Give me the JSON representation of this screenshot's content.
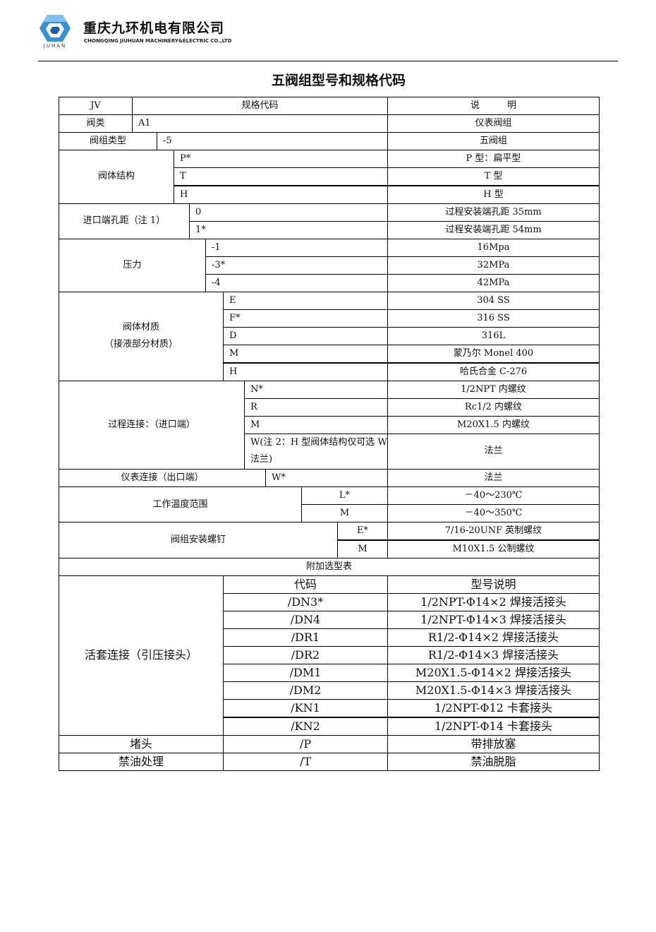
{
  "header": {
    "company_cn": "重庆九环机电有限公司",
    "company_en": "CHONGQING JIUHUAN MACHINERY&ELECTRIC CO.,LTD",
    "logo_text": "JUHAN",
    "brand_color": "#3a8fd0"
  },
  "title": "五阀组型号和规格代码",
  "table": {
    "head": {
      "prefix": "JV",
      "code": "规格代码",
      "desc": "说　　　明"
    },
    "sections": [
      {
        "label": "阀类",
        "rows": [
          {
            "code": "A1",
            "desc": "仪表阀组"
          }
        ]
      },
      {
        "label": "阀组类型",
        "rows": [
          {
            "code": "-5",
            "desc": "五阀组"
          }
        ]
      },
      {
        "label": "阀体结构",
        "rows": [
          {
            "code": "P*",
            "desc": "P 型：扁平型"
          },
          {
            "code": "T",
            "desc": "T 型"
          },
          {
            "code": "H",
            "desc": "H 型"
          }
        ]
      },
      {
        "label": "进口端孔距（注 1）",
        "rows": [
          {
            "code": "0",
            "desc": "过程安装端孔距 35mm"
          },
          {
            "code": "1*",
            "desc": "过程安装端孔距 54mm"
          }
        ]
      },
      {
        "label": "压力",
        "rows": [
          {
            "code": "-1",
            "desc": "16Mpa"
          },
          {
            "code": "-3*",
            "desc": "32MPa"
          },
          {
            "code": "-4",
            "desc": "42MPa"
          }
        ]
      },
      {
        "label": "阀体材质\n（接液部分材质）",
        "rows": [
          {
            "code": "E",
            "desc": "304 SS"
          },
          {
            "code": "F*",
            "desc": "316 SS"
          },
          {
            "code": "D",
            "desc": "316L"
          },
          {
            "code": "M",
            "desc": "蒙乃尔 Monel 400"
          },
          {
            "code": "H",
            "desc": "哈氏合金 C-276"
          }
        ]
      },
      {
        "label": "过程连接：（进口端）",
        "rows": [
          {
            "code": "N*",
            "desc": "1/2NPT 内螺纹"
          },
          {
            "code": "R",
            "desc": "Rc1/2 内螺纹"
          },
          {
            "code": "M",
            "desc": "M20X1.5 内螺纹"
          },
          {
            "code": "W(注 2：H 型阀体结构仅可选 W 法兰)",
            "desc": "法兰"
          }
        ]
      },
      {
        "label": "仪表连接（出口端）",
        "rows": [
          {
            "code": "W*",
            "desc": "法兰"
          }
        ]
      },
      {
        "label": "工作温度范围",
        "rows": [
          {
            "code": "L*",
            "desc": "－40～230℃"
          },
          {
            "code": "M",
            "desc": "－40～350℃"
          }
        ]
      },
      {
        "label": "阀组安装螺钉",
        "rows": [
          {
            "code": "E*",
            "desc": "7/16-20UNF 英制螺纹"
          },
          {
            "code": "M",
            "desc": "M10X1.5 公制螺纹"
          }
        ]
      }
    ],
    "extra_title": "附加选型表",
    "extra_sections": [
      {
        "label": "活套连接（引压接头）",
        "rows": [
          {
            "code": "代码",
            "desc": "型号说明"
          },
          {
            "code": "/DN3*",
            "desc": "1/2NPT-Φ14×2 焊接活接头"
          },
          {
            "code": "/DN4",
            "desc": "1/2NPT-Φ14×3 焊接活接头"
          },
          {
            "code": "/DR1",
            "desc": "R1/2-Φ14×2 焊接活接头"
          },
          {
            "code": "/DR2",
            "desc": "R1/2-Φ14×3 焊接活接头"
          },
          {
            "code": "/DM1",
            "desc": "M20X1.5-Φ14×2 焊接活接头"
          },
          {
            "code": "/DM2",
            "desc": "M20X1.5-Φ14×3 焊接活接头"
          },
          {
            "code": "/KN1",
            "desc": "1/2NPT-Φ12 卡套接头"
          },
          {
            "code": "/KN2",
            "desc": "1/2NPT-Φ14 卡套接头"
          }
        ]
      },
      {
        "label": "堵头",
        "rows": [
          {
            "code": "/P",
            "desc": "带排放塞"
          }
        ]
      },
      {
        "label": "禁油处理",
        "rows": [
          {
            "code": "/T",
            "desc": "禁油脱脂"
          }
        ]
      }
    ]
  }
}
